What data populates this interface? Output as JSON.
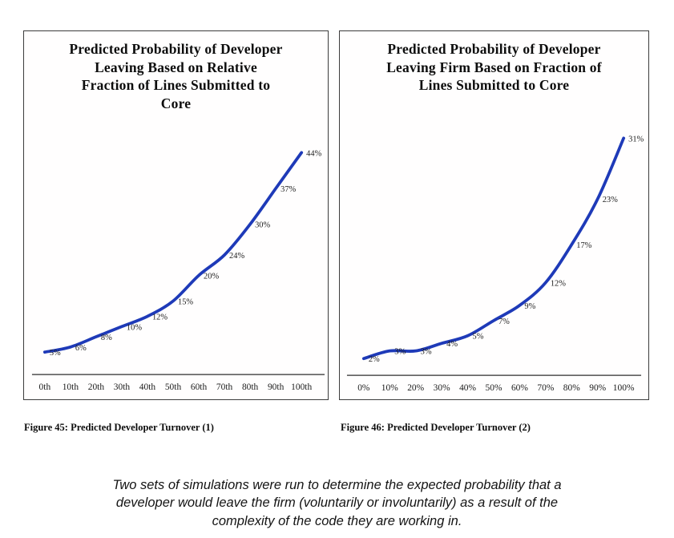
{
  "page": {
    "background": "#ffffff"
  },
  "figures": [
    {
      "title_lines": [
        "Predicted Probability of Developer",
        "Leaving Based on Relative",
        "Fraction of Lines Submitted to",
        "Core"
      ],
      "figure_caption": "Figure 45: Predicted Developer Turnover (1)"
    },
    {
      "title_lines": [
        "Predicted Probability of Developer",
        "Leaving Firm Based on Fraction of",
        "Lines Submitted to Core"
      ],
      "figure_caption": "Figure 46: Predicted Developer Turnover (2)"
    }
  ],
  "bottom_caption_lines": [
    "Two sets of simulations were run to determine the expected probability that a",
    "developer would leave the firm (voluntarily or involuntarily) as a result of the",
    "complexity of the code they are working in."
  ],
  "chart_data": [
    {
      "type": "line",
      "title": "Predicted Probability of Developer Leaving Based on Relative Fraction of Lines Submitted to Core",
      "categories": [
        "0th",
        "10th",
        "20th",
        "30th",
        "40th",
        "50th",
        "60th",
        "70th",
        "80th",
        "90th",
        "100th"
      ],
      "values": [
        5,
        6,
        8,
        10,
        12,
        15,
        20,
        24,
        30,
        37,
        44
      ],
      "data_labels": [
        "5%",
        "6%",
        "8%",
        "10%",
        "12%",
        "15%",
        "20%",
        "24%",
        "30%",
        "37%",
        "44%"
      ],
      "xlabel": "",
      "ylabel": "",
      "unit": "%",
      "ylim": [
        0,
        50
      ],
      "grid": false,
      "legend": false,
      "line_color": "#1e3ab8",
      "axis_color": "#4f4f4f"
    },
    {
      "type": "line",
      "title": "Predicted Probability of Developer Leaving Firm Based on Fraction of Lines Submitted to Core",
      "categories": [
        "0%",
        "10%",
        "20%",
        "30%",
        "40%",
        "50%",
        "60%",
        "70%",
        "80%",
        "90%",
        "100%"
      ],
      "values": [
        2,
        3,
        3,
        4,
        5,
        7,
        9,
        12,
        17,
        23,
        31
      ],
      "data_labels": [
        "2%",
        "3%",
        "3%",
        "4%",
        "5%",
        "7%",
        "9%",
        "12%",
        "17%",
        "23%",
        "31%"
      ],
      "xlabel": "",
      "ylabel": "",
      "unit": "%",
      "ylim": [
        0,
        35
      ],
      "grid": false,
      "legend": false,
      "line_color": "#1e3ab8",
      "axis_color": "#4f4f4f"
    }
  ]
}
